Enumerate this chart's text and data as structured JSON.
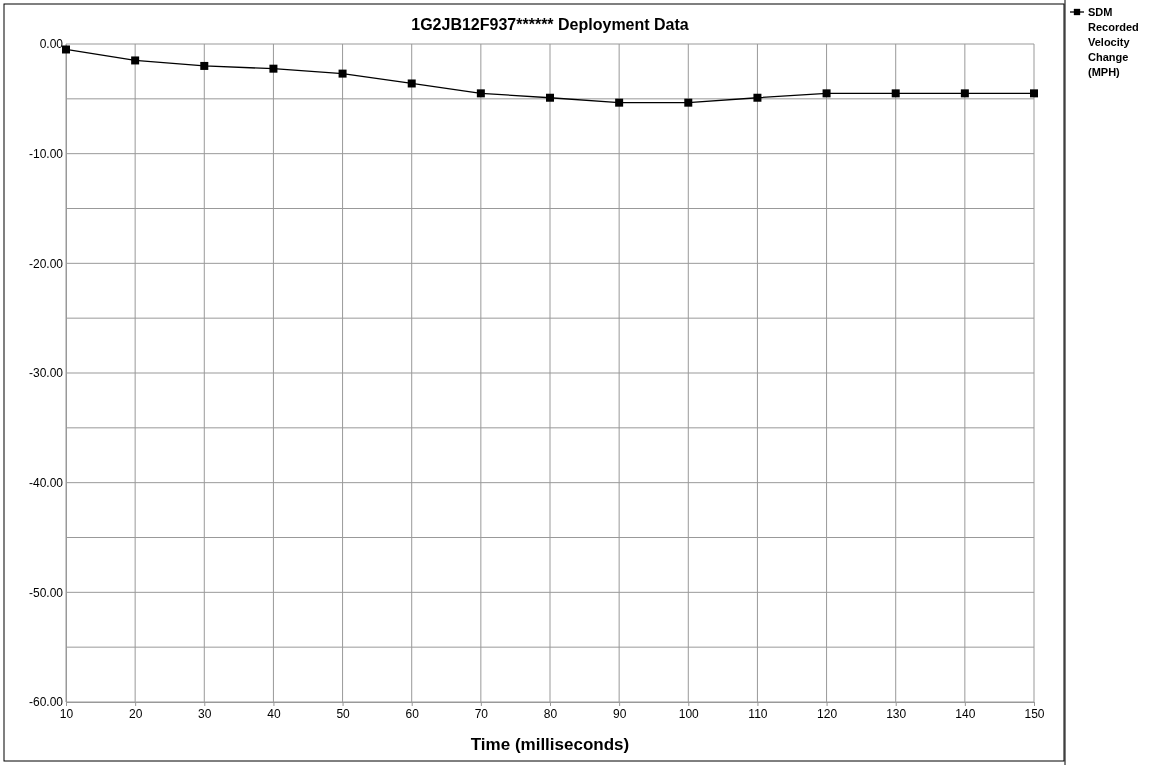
{
  "chart_data": {
    "type": "line",
    "title": "1G2JB12F937******  Deployment Data",
    "xlabel": "Time (milliseconds)",
    "x": [
      10,
      20,
      30,
      40,
      50,
      60,
      70,
      80,
      90,
      100,
      110,
      120,
      130,
      140,
      150
    ],
    "series": [
      {
        "name": "SDM Recorded Velocity Change (MPH)",
        "color": "#000000",
        "values": [
          -0.5,
          -1.5,
          -2.0,
          -2.25,
          -2.7,
          -3.6,
          -4.5,
          -4.9,
          -5.35,
          -5.35,
          -4.9,
          -4.5,
          -4.5,
          -4.5,
          -4.5
        ]
      }
    ],
    "xlim": [
      10,
      150
    ],
    "xticks": [
      10,
      20,
      30,
      40,
      50,
      60,
      70,
      80,
      90,
      100,
      110,
      120,
      130,
      140,
      150
    ],
    "ylim": [
      -60,
      0
    ],
    "yticks": [
      {
        "value": -60,
        "label": "-60.00"
      },
      {
        "value": -55,
        "label": null
      },
      {
        "value": -50,
        "label": "-50.00"
      },
      {
        "value": -45,
        "label": null
      },
      {
        "value": -40,
        "label": "-40.00"
      },
      {
        "value": -35,
        "label": null
      },
      {
        "value": -30,
        "label": "-30.00"
      },
      {
        "value": -25,
        "label": null
      },
      {
        "value": -20,
        "label": "-20.00"
      },
      {
        "value": -15,
        "label": null
      },
      {
        "value": -10,
        "label": "-10.00"
      },
      {
        "value": -5,
        "label": null
      },
      {
        "value": 0,
        "label": "0.00"
      }
    ],
    "grid": true,
    "legend": "top right",
    "marker": "square",
    "line_style": "solid"
  }
}
